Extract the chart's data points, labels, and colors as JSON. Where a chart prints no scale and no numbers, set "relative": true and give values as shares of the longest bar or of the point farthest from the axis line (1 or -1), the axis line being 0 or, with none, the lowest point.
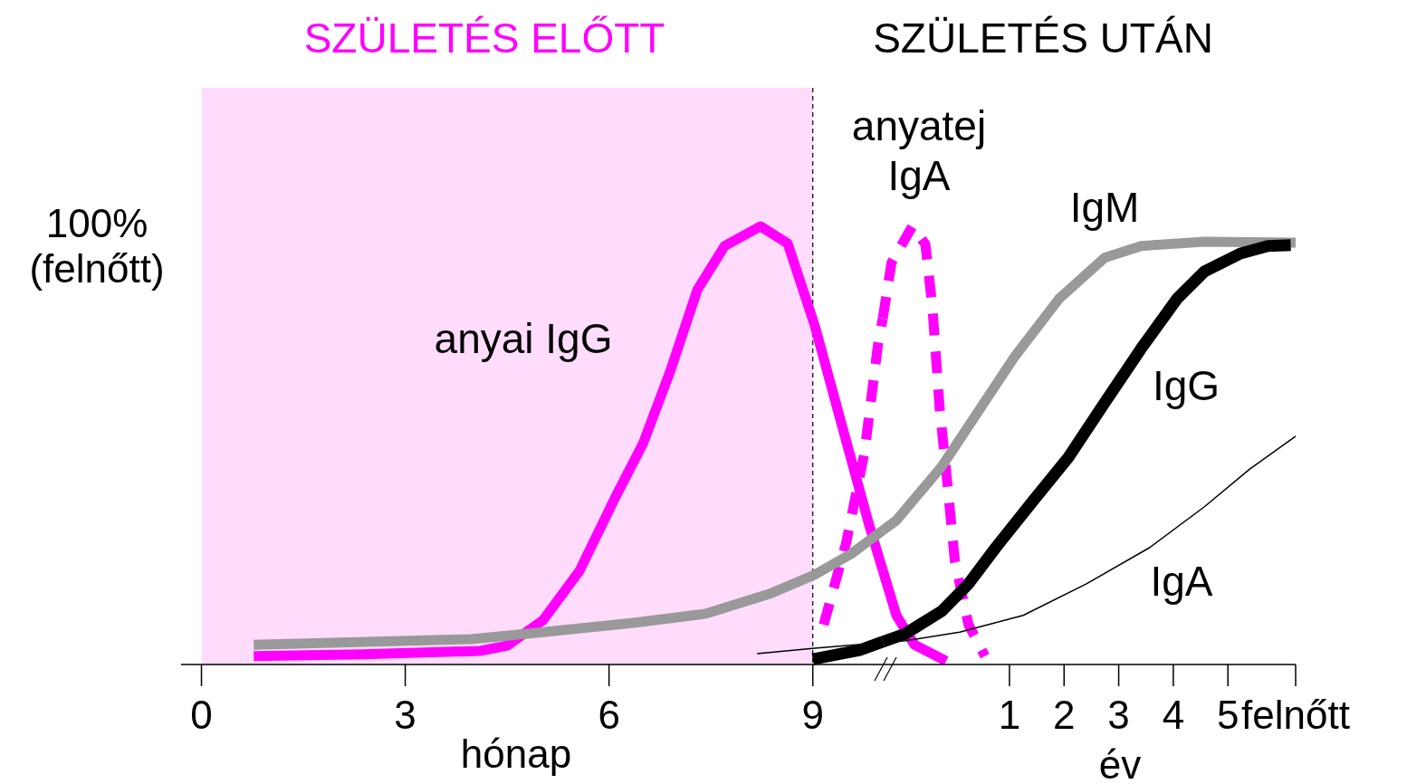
{
  "chart_data": [
    {
      "type": "line",
      "title": "SZÜLETÉS ELŐTT",
      "xlabel": "hónap",
      "ylabel": "100% (felnőtt)",
      "relative": true,
      "xlim": [
        -0.3,
        10.03
      ],
      "xticks": [
        0,
        3,
        6,
        9
      ],
      "bands": [
        {
          "axis": "x",
          "from": 0,
          "to": 9,
          "color": "#ffdcfb"
        }
      ],
      "ref_lines": [
        {
          "axis": "x",
          "value": 9,
          "line_style": "dashed",
          "color": "#000000"
        }
      ],
      "series": [
        {
          "name": "anyai IgG",
          "color": "#ff00ff",
          "x": [
            0.77,
            2.37,
            4.1,
            4.5,
            5.03,
            5.57,
            6.1,
            6.5,
            6.9,
            7.3,
            7.7,
            8.23,
            8.63,
            9.03,
            9.43,
            9.83,
            10.03
          ],
          "values": [
            0.019,
            0.023,
            0.031,
            0.043,
            0.101,
            0.215,
            0.384,
            0.504,
            0.669,
            0.855,
            0.955,
            1.0,
            0.961,
            0.773,
            0.545,
            0.318,
            0.215
          ]
        },
        {
          "color": "#ff00ff",
          "line_style": "dashed",
          "x": [
            9.16,
            9.49,
            9.76,
            9.96,
            10.03
          ],
          "values": [
            0.091,
            0.277,
            0.483,
            0.731,
            0.79
          ]
        },
        {
          "color": "#999999",
          "x": [
            0.77,
            3.97,
            5.03,
            6.36,
            7.43,
            8.36,
            9.03,
            9.56,
            10.03
          ],
          "values": [
            0.045,
            0.058,
            0.074,
            0.095,
            0.116,
            0.161,
            0.205,
            0.252,
            0.306
          ]
        },
        {
          "color": "#000000",
          "x": [
            9.0,
            9.69,
            10.03
          ],
          "values": [
            0.012,
            0.033,
            0.052
          ]
        },
        {
          "color": "#000000",
          "x": [
            8.18,
            9.03,
            10.03
          ],
          "values": [
            0.025,
            0.037,
            0.05
          ]
        }
      ]
    },
    {
      "type": "line",
      "title": "SZÜLETÉS UTÁN",
      "xlabel": "év",
      "relative": true,
      "xlim": [
        -1.32,
        6.24
      ],
      "xticks": [
        1,
        2,
        3,
        4,
        5,
        {
          "value": 6.24,
          "label": "felnőtt"
        }
      ],
      "series": [
        {
          "color": "#ff00ff",
          "x": [
            -1.32,
            -1.07,
            -0.74,
            -0.16
          ],
          "values": [
            0.215,
            0.112,
            0.045,
            0.008
          ]
        },
        {
          "name": "anyatej IgA",
          "color": "#ff00ff",
          "line_style": "dashed",
          "x": [
            -1.32,
            -1.16,
            -0.78,
            -0.54,
            -0.41,
            -0.28,
            -0.16,
            0.0,
            0.25,
            0.55
          ],
          "values": [
            0.79,
            0.917,
            1.0,
            0.959,
            0.814,
            0.587,
            0.442,
            0.236,
            0.091,
            0.019
          ]
        },
        {
          "name": "IgM",
          "color": "#999999",
          "x": [
            -1.32,
            -1.07,
            -0.24,
            0.42,
            1.08,
            1.91,
            2.74,
            3.41,
            4.57,
            6.24
          ],
          "values": [
            0.306,
            0.329,
            0.452,
            0.576,
            0.7,
            0.835,
            0.928,
            0.955,
            0.965,
            0.963
          ]
        },
        {
          "name": "IgG",
          "color": "#000000",
          "x": [
            -1.32,
            -0.91,
            -0.24,
            0.25,
            0.75,
            1.41,
            2.08,
            2.74,
            3.41,
            4.07,
            4.57,
            5.23,
            5.73,
            6.15
          ],
          "values": [
            0.052,
            0.07,
            0.122,
            0.184,
            0.267,
            0.37,
            0.473,
            0.597,
            0.721,
            0.835,
            0.897,
            0.938,
            0.955,
            0.957
          ]
        },
        {
          "name": "IgA",
          "color": "#000000",
          "x": [
            -1.32,
            -0.91,
            0.09,
            1.25,
            2.41,
            3.57,
            4.57,
            5.4,
            6.24
          ],
          "values": [
            0.05,
            0.054,
            0.074,
            0.112,
            0.184,
            0.267,
            0.36,
            0.446,
            0.521
          ]
        }
      ]
    }
  ]
}
